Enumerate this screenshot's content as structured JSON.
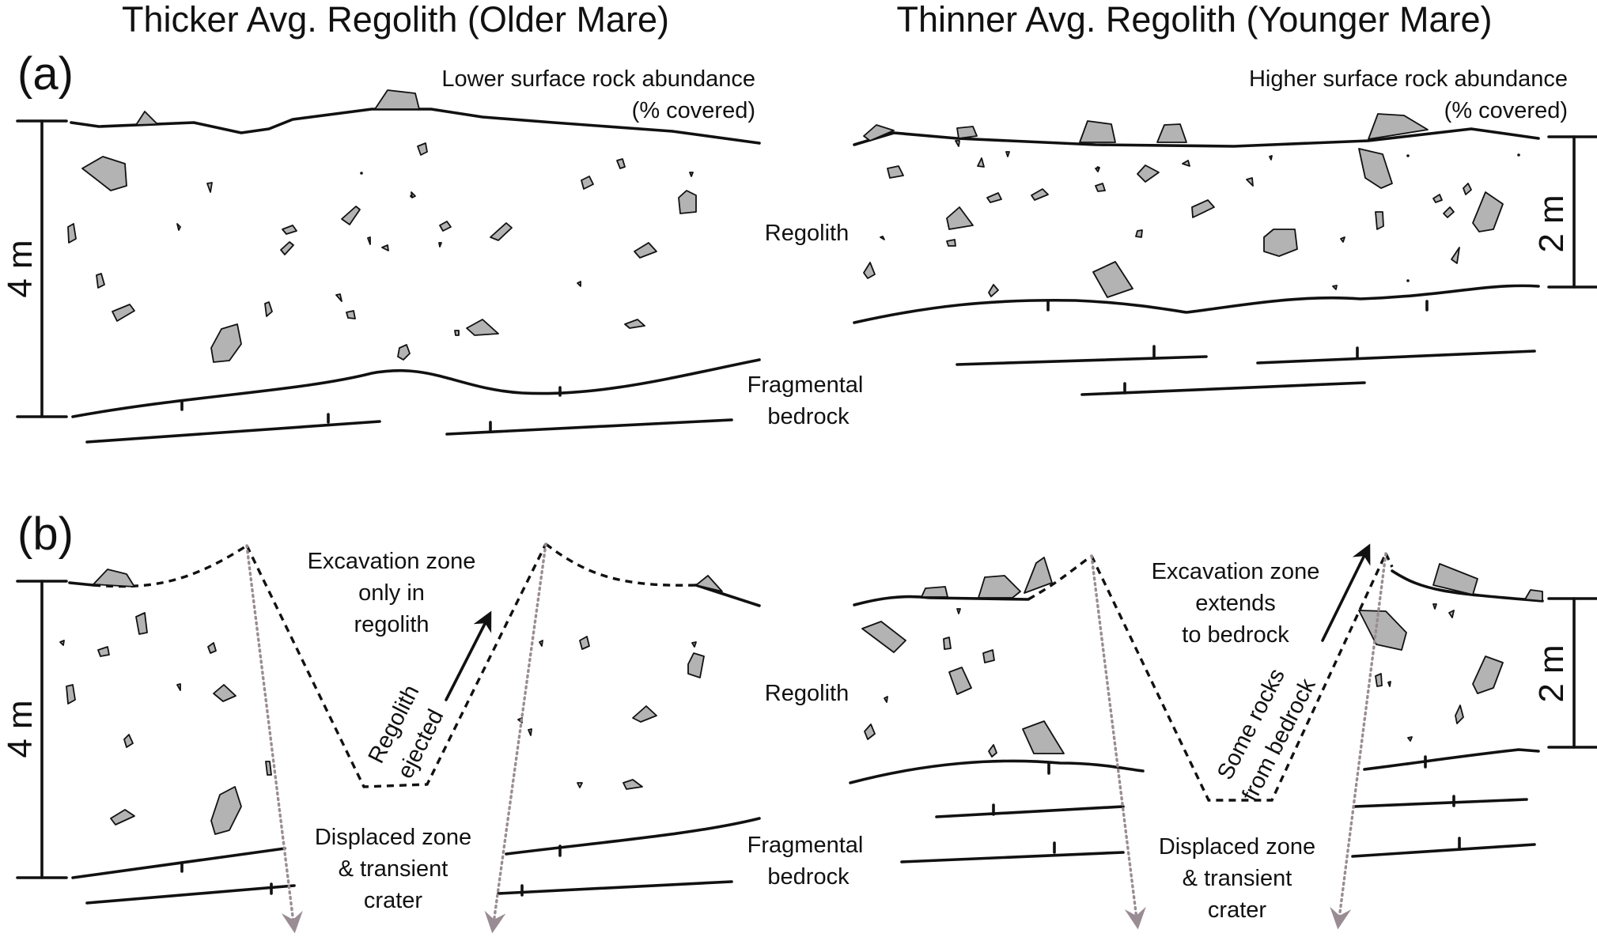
{
  "titles": {
    "left": "Thicker Avg. Regolith (Older Mare)",
    "right": "Thinner Avg. Regolith (Younger Mare)"
  },
  "panels": {
    "a": "(a)",
    "b": "(b)"
  },
  "labels": {
    "lower_rock_1": "Lower surface rock abundance",
    "lower_rock_2": "(% covered)",
    "higher_rock_1": "Higher surface rock abundance",
    "higher_rock_2": "(% covered)",
    "regolith": "Regolith",
    "fragmental_1": "Fragmental",
    "fragmental_2": "bedrock",
    "excav_left_1": "Excavation zone",
    "excav_left_2": "only in",
    "excav_left_3": "regolith",
    "excav_right_1": "Excavation zone",
    "excav_right_2": "extends",
    "excav_right_3": "to bedrock",
    "regolith_ejected_1": "Regolith",
    "regolith_ejected_2": "ejected",
    "some_rocks_1": "Some rocks",
    "some_rocks_2": "from bedrock",
    "displaced_1": "Displaced zone",
    "displaced_2": "& transient",
    "displaced_3": "crater"
  },
  "scale": {
    "left": "4 m",
    "right": "2 m"
  },
  "colors": {
    "rock": "#b3b3b3",
    "line": "#111111",
    "trajectory": "#9a8c93"
  }
}
